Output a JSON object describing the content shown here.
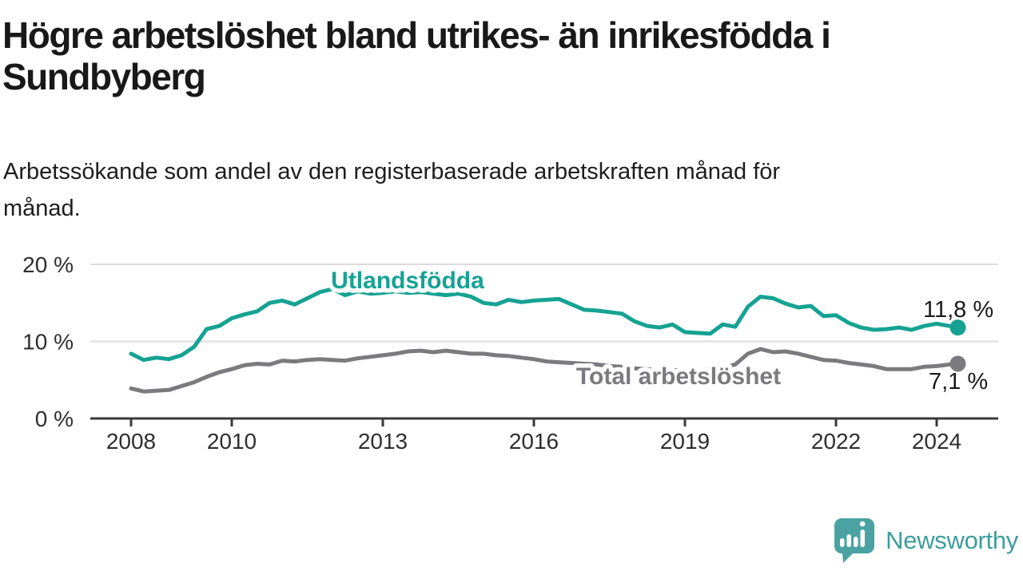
{
  "chart_data": {
    "type": "line",
    "title": "Högre arbetslöshet bland utrikes- än inrikesfödda i\nSundbyberg",
    "subtitle": "Arbetssökande som andel av den registerbaserade arbetskraften månad för\nmånad.",
    "unit": "%",
    "legend": "inline-labels",
    "grid": "horizontal-only",
    "x_axis": {
      "range": [
        2007.2,
        2025.2
      ],
      "ticks": [
        2008,
        2010,
        2013,
        2016,
        2019,
        2022,
        2024
      ]
    },
    "y_axis": {
      "range": [
        0,
        22
      ],
      "ticks": [
        {
          "value": 0,
          "label": "0 %"
        },
        {
          "value": 10,
          "label": "10 %"
        },
        {
          "value": 20,
          "label": "20 %"
        }
      ]
    },
    "x": [
      2008.0,
      2008.25,
      2008.5,
      2008.75,
      2009.0,
      2009.25,
      2009.5,
      2009.75,
      2010.0,
      2010.25,
      2010.5,
      2010.75,
      2011.0,
      2011.25,
      2011.5,
      2011.75,
      2012.0,
      2012.25,
      2012.5,
      2012.75,
      2013.0,
      2013.25,
      2013.5,
      2013.75,
      2014.0,
      2014.25,
      2014.5,
      2014.75,
      2015.0,
      2015.25,
      2015.5,
      2015.75,
      2016.0,
      2016.25,
      2016.5,
      2016.75,
      2017.0,
      2017.25,
      2017.5,
      2017.75,
      2018.0,
      2018.25,
      2018.5,
      2018.75,
      2019.0,
      2019.25,
      2019.5,
      2019.75,
      2020.0,
      2020.25,
      2020.5,
      2020.75,
      2021.0,
      2021.25,
      2021.5,
      2021.75,
      2022.0,
      2022.25,
      2022.5,
      2022.75,
      2023.0,
      2023.25,
      2023.5,
      2023.75,
      2024.0,
      2024.25,
      2024.42
    ],
    "series": [
      {
        "name": "Utlandsfödda",
        "color_key": "foreign_born",
        "end_value": 11.8,
        "end_label": "11,8 %",
        "values": [
          8.4,
          7.6,
          7.9,
          7.7,
          8.2,
          9.3,
          11.6,
          12.0,
          13.0,
          13.5,
          13.9,
          15.0,
          15.3,
          14.8,
          15.6,
          16.4,
          16.8,
          16.0,
          16.5,
          16.2,
          16.3,
          16.5,
          16.3,
          16.4,
          16.2,
          16.0,
          16.2,
          15.8,
          15.0,
          14.8,
          15.4,
          15.1,
          15.3,
          15.4,
          15.5,
          14.8,
          14.1,
          14.0,
          13.8,
          13.6,
          12.6,
          12.0,
          11.8,
          12.2,
          11.2,
          11.1,
          11.0,
          12.2,
          11.9,
          14.5,
          15.8,
          15.6,
          14.9,
          14.4,
          14.6,
          13.3,
          13.4,
          12.4,
          11.8,
          11.5,
          11.6,
          11.8,
          11.5,
          12.0,
          12.3,
          12.0,
          11.8
        ]
      },
      {
        "name": "Total arbetslöshet",
        "color_key": "total",
        "end_value": 7.1,
        "end_label": "7,1 %",
        "values": [
          3.9,
          3.5,
          3.6,
          3.7,
          4.2,
          4.7,
          5.4,
          6.0,
          6.4,
          6.9,
          7.1,
          7.0,
          7.5,
          7.4,
          7.6,
          7.7,
          7.6,
          7.5,
          7.8,
          8.0,
          8.2,
          8.4,
          8.7,
          8.8,
          8.6,
          8.8,
          8.6,
          8.4,
          8.4,
          8.2,
          8.1,
          7.9,
          7.7,
          7.4,
          7.3,
          7.2,
          7.1,
          7.0,
          6.8,
          6.7,
          6.5,
          6.4,
          6.3,
          6.3,
          6.2,
          6.3,
          6.4,
          6.6,
          7.0,
          8.4,
          9.0,
          8.6,
          8.7,
          8.4,
          8.0,
          7.6,
          7.5,
          7.2,
          7.0,
          6.8,
          6.4,
          6.4,
          6.4,
          6.7,
          6.8,
          7.0,
          7.1
        ]
      }
    ]
  },
  "colors": {
    "foreign_born": "#16a293",
    "total": "#7a7a7f",
    "axis": "#3a3a3a",
    "grid": "#dcdcdc",
    "text": "#1a1a1a",
    "brand_teal": "#4aa2a2",
    "brand_text": "#3f9d9d",
    "white": "#ffffff"
  },
  "footer": {
    "brand": "Newsworthy"
  }
}
